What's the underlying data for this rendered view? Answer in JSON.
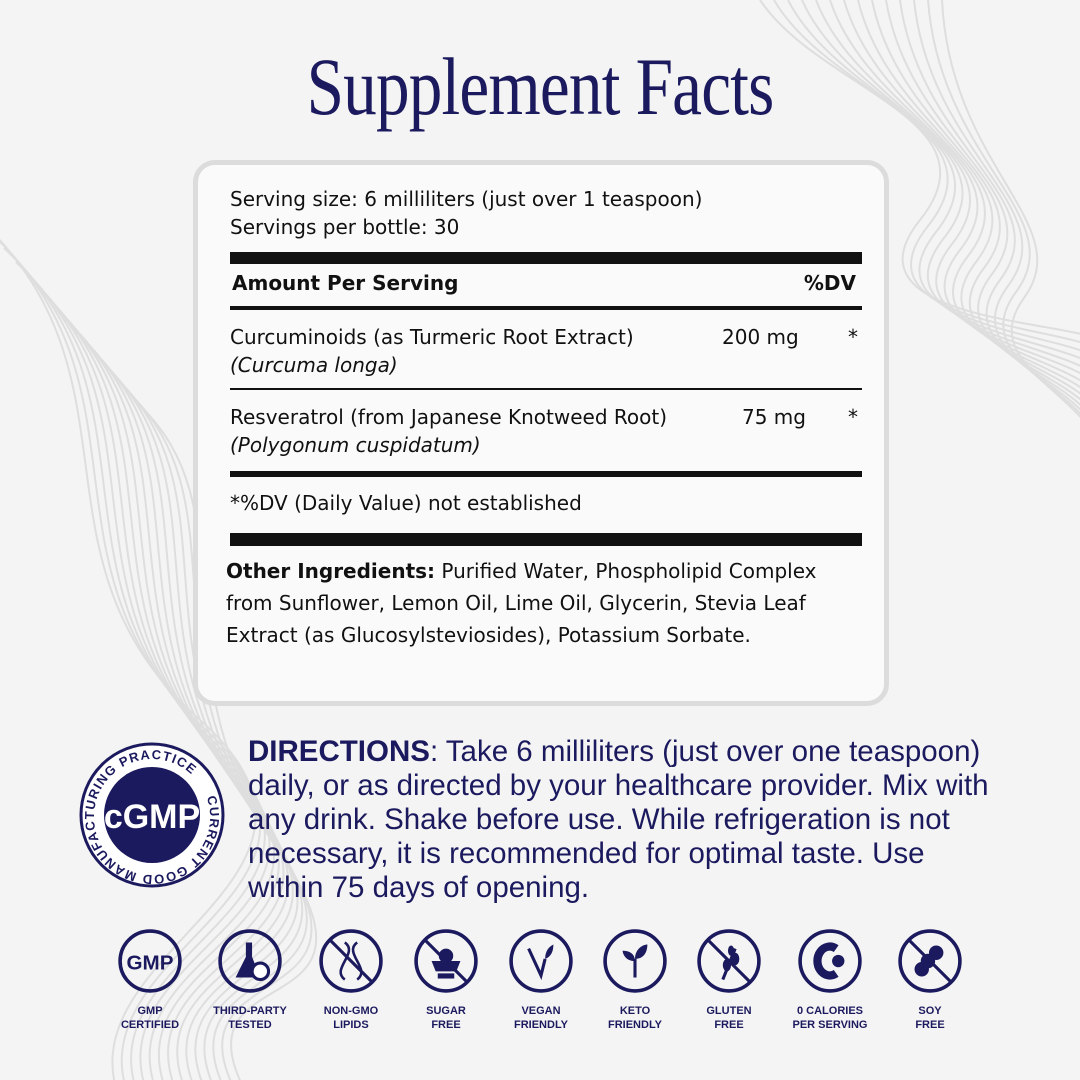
{
  "title": "Supplement Facts",
  "facts": {
    "serving_size": "Serving size: 6 milliliters (just over 1 teaspoon)",
    "servings_per": "Servings per bottle: 30",
    "amount_header": "Amount Per Serving",
    "dv_header": "%DV",
    "rows": [
      {
        "name": "Curcuminoids (as Turmeric Root Extract)",
        "latin": "(Curcuma longa)",
        "amount": "200 mg",
        "dv": "*"
      },
      {
        "name": "Resveratrol (from Japanese Knotweed Root)",
        "latin": "(Polygonum cuspidatum)",
        "amount": "75 mg",
        "dv": "*"
      }
    ],
    "footnote": "*%DV (Daily Value) not established",
    "other_label": "Other Ingredients:",
    "other_text": " Purified Water, Phospholipid Complex from Sunflower, Lemon Oil, Lime Oil, Glycerin, Stevia Leaf Extract (as Glucosylsteviosides), Potassium Sorbate."
  },
  "directions": {
    "label": "DIRECTIONS",
    "text": ": Take 6 milliliters  (just over one teaspoon) daily, or as directed by your healthcare provider. Mix with any drink. Shake before use. While refrigeration is not necessary, it is recommended for optimal taste. Use within 75 days of opening."
  },
  "badge": {
    "center": "cGMP",
    "ring": "CURRENT GOOD MANUFACTURING PRACTICE"
  },
  "icons": [
    {
      "icon": "gmp-icon",
      "l1": "GMP",
      "l2": "CERTIFIED"
    },
    {
      "icon": "flask-check-icon",
      "l1": "THIRD-PARTY",
      "l2": "TESTED"
    },
    {
      "icon": "dna-crossed-icon",
      "l1": "NON-GMO",
      "l2": "LIPIDS"
    },
    {
      "icon": "sugar-crossed-icon",
      "l1": "SUGAR",
      "l2": "FREE"
    },
    {
      "icon": "vegan-icon",
      "l1": "VEGAN",
      "l2": "FRIENDLY"
    },
    {
      "icon": "leaf-icon",
      "l1": "KETO",
      "l2": "FRIENDLY"
    },
    {
      "icon": "wheat-crossed-icon",
      "l1": "GLUTEN",
      "l2": "FREE"
    },
    {
      "icon": "calorie-icon",
      "l1": "0 CALORIES",
      "l2": "PER SERVING"
    },
    {
      "icon": "soy-crossed-icon",
      "l1": "SOY",
      "l2": "FREE"
    }
  ],
  "colors": {
    "navy": "#1c1a5e",
    "background": "#f4f4f4"
  }
}
